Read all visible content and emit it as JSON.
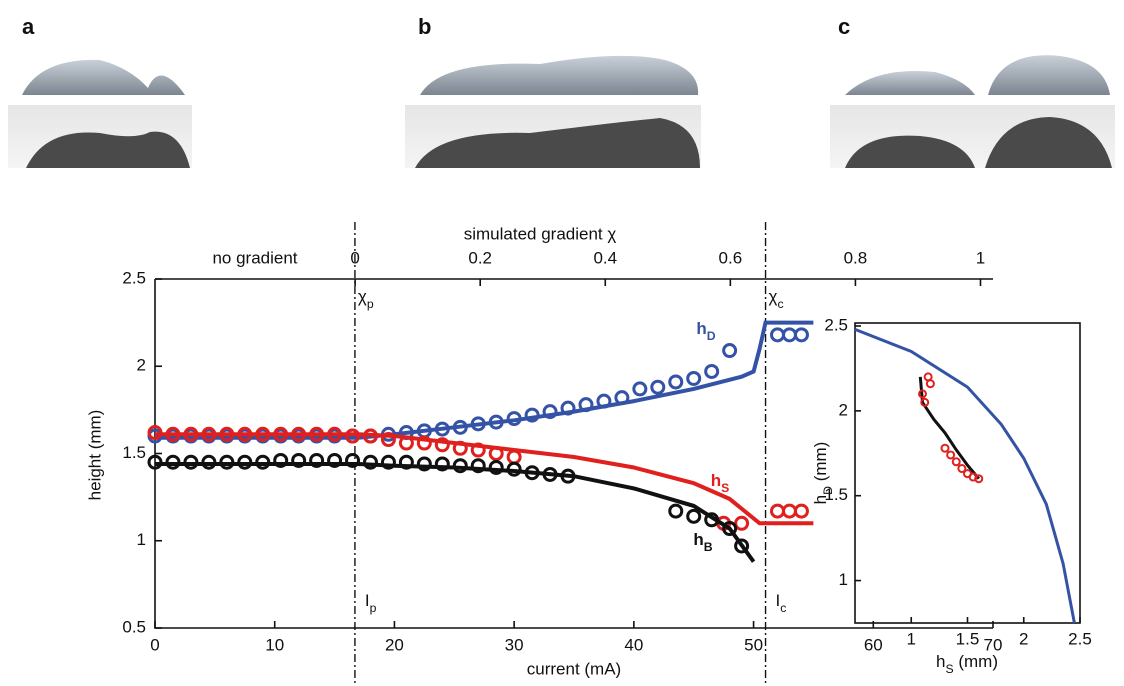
{
  "panels": [
    "a",
    "b",
    "c"
  ],
  "chart_data": [
    {
      "type": "line",
      "x_label": "current (mA)",
      "y_label": "height (mm)",
      "x2_label": "simulated gradient χ",
      "x2_note": "no gradient",
      "xlim": [
        0,
        70
      ],
      "xticks": [
        0,
        10,
        20,
        30,
        40,
        50,
        60,
        70
      ],
      "ylim": [
        0.5,
        2.5
      ],
      "yticks": [
        0.5,
        1,
        1.5,
        2,
        2.5
      ],
      "x2lim": [
        -0.32,
        1.02
      ],
      "x2ticks": [
        0,
        0.2,
        0.4,
        0.6,
        0.8,
        1
      ],
      "markers": [
        {
          "x": 16.7,
          "top": "χ",
          "top_sub": "p",
          "bottom": "I",
          "bottom_sub": "p"
        },
        {
          "x": 51,
          "top": "χ",
          "top_sub": "c",
          "bottom": "I",
          "bottom_sub": "c"
        }
      ],
      "series": [
        {
          "name": "h",
          "subscript": "D",
          "color": "#3553a6",
          "x": [
            0,
            1.5,
            3,
            4.5,
            6,
            7.5,
            9,
            10.5,
            12,
            13.5,
            15,
            16.5,
            18,
            19.5,
            21,
            22.5,
            24,
            25.5,
            27,
            28.5,
            30,
            31.5,
            33,
            34.5,
            36,
            37.5,
            39,
            40.5,
            42,
            43.5,
            45,
            46.5,
            48,
            52,
            53,
            54
          ],
          "values": [
            1.6,
            1.6,
            1.6,
            1.6,
            1.6,
            1.6,
            1.6,
            1.6,
            1.6,
            1.6,
            1.6,
            1.6,
            1.6,
            1.61,
            1.62,
            1.63,
            1.64,
            1.65,
            1.67,
            1.68,
            1.7,
            1.72,
            1.74,
            1.76,
            1.78,
            1.8,
            1.82,
            1.87,
            1.88,
            1.91,
            1.93,
            1.97,
            2.09,
            2.18,
            2.18,
            2.18
          ],
          "model_x": [
            0,
            17,
            20,
            25,
            30,
            35,
            40,
            45,
            49,
            50,
            50.5,
            51,
            55
          ],
          "model_values": [
            1.59,
            1.59,
            1.61,
            1.65,
            1.69,
            1.74,
            1.8,
            1.87,
            1.94,
            1.97,
            2.1,
            2.25,
            2.25
          ]
        },
        {
          "name": "h",
          "subscript": "S",
          "color": "#e0201e",
          "x": [
            0,
            1.5,
            3,
            4.5,
            6,
            7.5,
            9,
            10.5,
            12,
            13.5,
            15,
            16.5,
            18,
            19.5,
            21,
            22.5,
            24,
            25.5,
            27,
            28.5,
            30,
            47.5,
            49,
            52,
            53,
            54
          ],
          "values": [
            1.62,
            1.61,
            1.61,
            1.61,
            1.61,
            1.61,
            1.61,
            1.61,
            1.61,
            1.61,
            1.61,
            1.6,
            1.6,
            1.58,
            1.56,
            1.56,
            1.55,
            1.53,
            1.52,
            1.5,
            1.48,
            1.1,
            1.1,
            1.17,
            1.17,
            1.17
          ],
          "model_x": [
            0,
            17,
            20,
            25,
            30,
            35,
            40,
            45,
            48,
            50.5,
            55
          ],
          "model_values": [
            1.61,
            1.61,
            1.6,
            1.56,
            1.52,
            1.48,
            1.42,
            1.33,
            1.24,
            1.1,
            1.1
          ]
        },
        {
          "name": "h",
          "subscript": "B",
          "color": "#111111",
          "x": [
            0,
            1.5,
            3,
            4.5,
            6,
            7.5,
            9,
            10.5,
            12,
            13.5,
            15,
            16.5,
            18,
            19.5,
            21,
            22.5,
            24,
            25.5,
            27,
            28.5,
            30,
            31.5,
            33,
            34.5,
            43.5,
            45,
            46.5,
            48,
            49
          ],
          "values": [
            1.45,
            1.45,
            1.45,
            1.45,
            1.45,
            1.45,
            1.45,
            1.46,
            1.46,
            1.46,
            1.46,
            1.46,
            1.45,
            1.45,
            1.45,
            1.44,
            1.44,
            1.43,
            1.43,
            1.42,
            1.41,
            1.39,
            1.38,
            1.37,
            1.17,
            1.14,
            1.12,
            1.07,
            0.97
          ],
          "model_x": [
            0,
            17,
            20,
            25,
            30,
            35,
            40,
            45,
            48,
            50
          ],
          "model_values": [
            1.44,
            1.44,
            1.43,
            1.42,
            1.4,
            1.37,
            1.3,
            1.2,
            1.07,
            0.88
          ]
        }
      ]
    },
    {
      "type": "scatter",
      "x_label": {
        "text": "h",
        "sub": "S",
        "after": " (mm)"
      },
      "y_label": {
        "text": "h",
        "sub": "D",
        "after": " (mm)"
      },
      "xlim": [
        0.5,
        2.5
      ],
      "xticks": [
        1,
        1.5,
        2,
        2.5
      ],
      "ylim": [
        0.75,
        2.5
      ],
      "yticks": [
        1,
        1.5,
        2,
        2.5
      ],
      "series": [
        {
          "style": "line",
          "color": "#3553a6",
          "x": [
            0.5,
            1,
            1.5,
            1.8,
            2,
            2.2,
            2.35,
            2.45
          ],
          "values": [
            2.48,
            2.35,
            2.14,
            1.92,
            1.72,
            1.45,
            1.1,
            0.75
          ]
        },
        {
          "style": "line",
          "color": "#111111",
          "x": [
            1.08,
            1.1,
            1.2,
            1.3,
            1.4,
            1.5,
            1.6
          ],
          "values": [
            2.2,
            2.05,
            1.95,
            1.87,
            1.77,
            1.68,
            1.6
          ]
        },
        {
          "style": "markers",
          "color": "#e0201e",
          "x": [
            1.15,
            1.17,
            1.1,
            1.12,
            1.3,
            1.35,
            1.4,
            1.45,
            1.5,
            1.55,
            1.6
          ],
          "values": [
            2.2,
            2.16,
            2.1,
            2.05,
            1.78,
            1.74,
            1.7,
            1.66,
            1.63,
            1.61,
            1.6
          ]
        }
      ]
    }
  ]
}
